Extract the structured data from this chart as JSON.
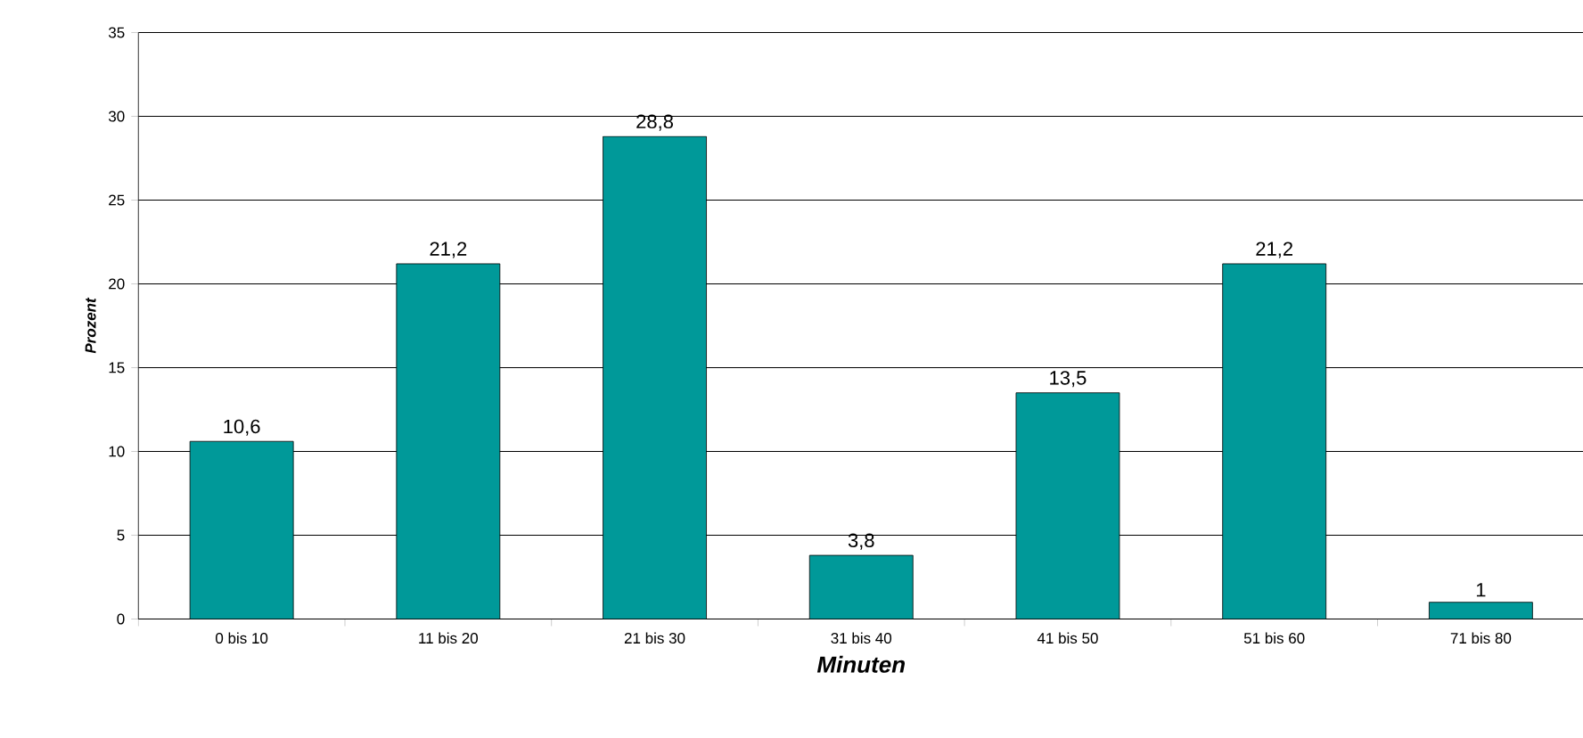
{
  "chart_data": {
    "type": "bar",
    "xlabel": "Minuten",
    "ylabel": "Prozent",
    "categories": [
      "0 bis 10",
      "11 bis 20",
      "21 bis 30",
      "31 bis 40",
      "41 bis 50",
      "51 bis 60",
      "71 bis 80"
    ],
    "values": [
      10.6,
      21.2,
      28.8,
      3.8,
      13.5,
      21.2,
      1
    ],
    "value_labels": [
      "10,6",
      "21,2",
      "28,8",
      "3,8",
      "13,5",
      "21,2",
      "1"
    ],
    "color": "#009999",
    "ylim": [
      0,
      35
    ],
    "yticks": [
      0,
      5,
      10,
      15,
      20,
      25,
      30,
      35
    ],
    "grid": "y"
  }
}
